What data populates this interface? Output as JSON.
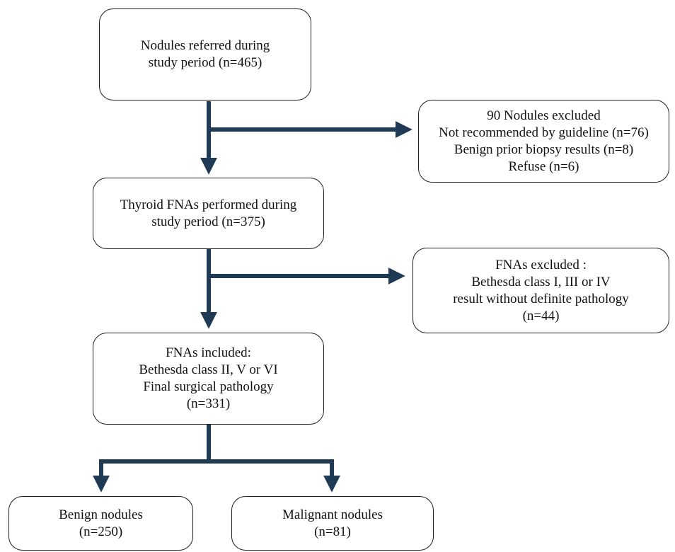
{
  "colors": {
    "arrow": "#1f3a55",
    "border": "#1f1f1f",
    "text": "#111111"
  },
  "boxes": {
    "referred": {
      "lines": [
        "Nodules referred during",
        "study period (n=465)"
      ]
    },
    "excluded1": {
      "lines": [
        "90 Nodules excluded",
        "Not recommended by guideline (n=76)",
        "Benign prior biopsy results (n=8)",
        "Refuse (n=6)"
      ]
    },
    "performed": {
      "lines": [
        "Thyroid FNAs performed during",
        "study period (n=375)"
      ]
    },
    "excluded2": {
      "lines": [
        "FNAs excluded :",
        "Bethesda class I, III or IV",
        "result without definite pathology",
        "(n=44)"
      ]
    },
    "included": {
      "lines": [
        "FNAs included:",
        "Bethesda class II, V or VI",
        "Final surgical pathology",
        "(n=331)"
      ]
    },
    "benign": {
      "lines": [
        "Benign nodules",
        "(n=250)"
      ]
    },
    "malignant": {
      "lines": [
        "Malignant nodules",
        "(n=81)"
      ]
    }
  }
}
